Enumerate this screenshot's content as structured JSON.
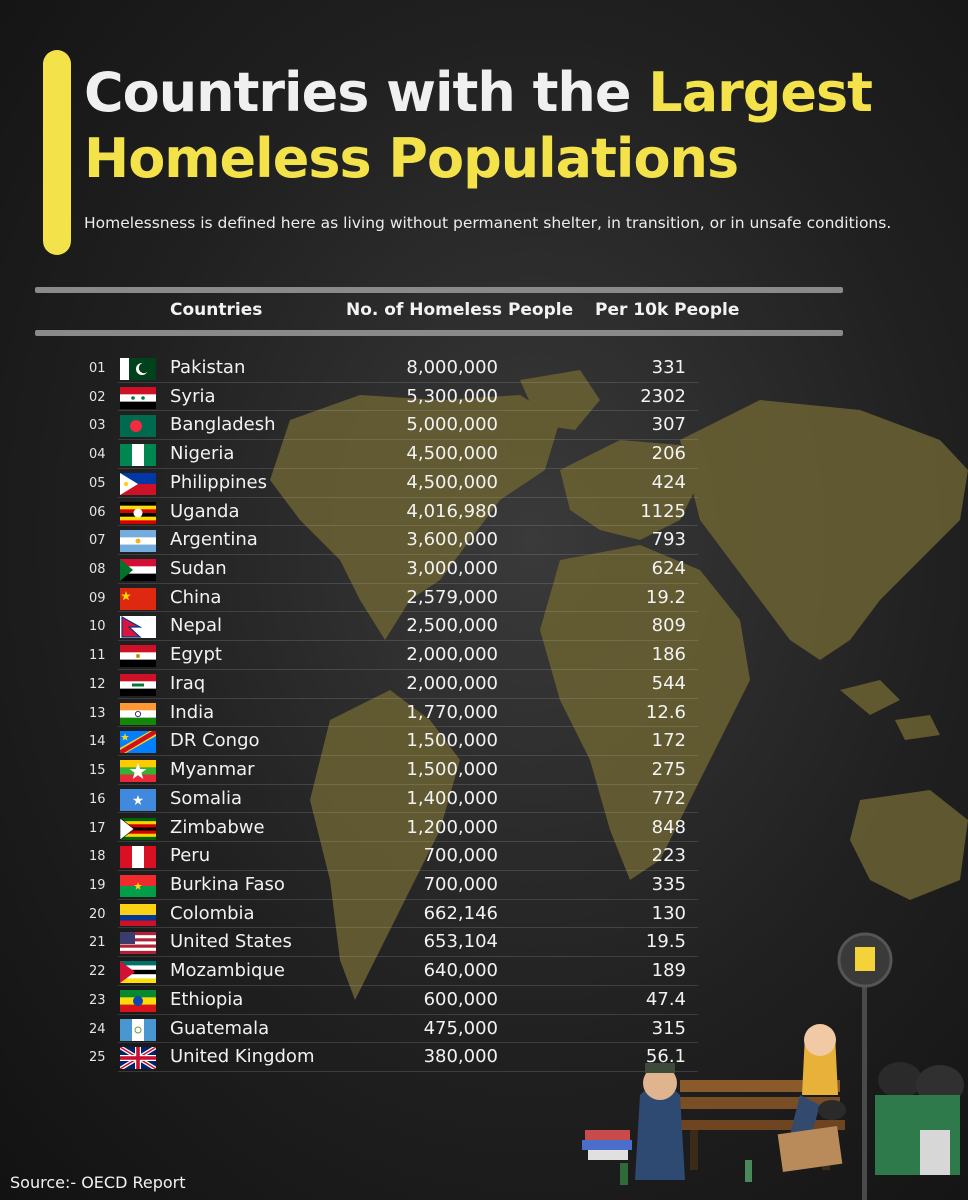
{
  "title": {
    "line1_plain": "Countries with the ",
    "line1_highlight": "Largest",
    "line2_highlight": "Homeless Populations"
  },
  "subtitle": "Homelessness is defined here as living without permanent shelter, in transition, or in unsafe conditions.",
  "source": "Source:-  OECD Report",
  "colors": {
    "accent": "#f3e24a",
    "background": "#1c1c1c",
    "map": "#6b6232"
  },
  "chart_data": {
    "type": "table",
    "columns": [
      "Countries",
      "No. of Homeless People",
      "Per 10k People"
    ],
    "rows": [
      {
        "rank": "01",
        "country": "Pakistan",
        "homeless": "8,000,000",
        "per10k": "331",
        "flag": "pakistan-flag"
      },
      {
        "rank": "02",
        "country": "Syria",
        "homeless": "5,300,000",
        "per10k": "2302",
        "flag": "syria-flag"
      },
      {
        "rank": "03",
        "country": "Bangladesh",
        "homeless": "5,000,000",
        "per10k": "307",
        "flag": "bangladesh-flag"
      },
      {
        "rank": "04",
        "country": "Nigeria",
        "homeless": "4,500,000",
        "per10k": "206",
        "flag": "nigeria-flag"
      },
      {
        "rank": "05",
        "country": "Philippines",
        "homeless": "4,500,000",
        "per10k": "424",
        "flag": "philippines-flag"
      },
      {
        "rank": "06",
        "country": "Uganda",
        "homeless": "4,016,980",
        "per10k": "1125",
        "flag": "uganda-flag"
      },
      {
        "rank": "07",
        "country": "Argentina",
        "homeless": "3,600,000",
        "per10k": "793",
        "flag": "argentina-flag"
      },
      {
        "rank": "08",
        "country": "Sudan",
        "homeless": "3,000,000",
        "per10k": "624",
        "flag": "sudan-flag"
      },
      {
        "rank": "09",
        "country": "China",
        "homeless": "2,579,000",
        "per10k": "19.2",
        "flag": "china-flag"
      },
      {
        "rank": "10",
        "country": "Nepal",
        "homeless": "2,500,000",
        "per10k": "809",
        "flag": "nepal-flag"
      },
      {
        "rank": "11",
        "country": "Egypt",
        "homeless": "2,000,000",
        "per10k": "186",
        "flag": "egypt-flag"
      },
      {
        "rank": "12",
        "country": "Iraq",
        "homeless": "2,000,000",
        "per10k": "544",
        "flag": "iraq-flag"
      },
      {
        "rank": "13",
        "country": "India",
        "homeless": "1,770,000",
        "per10k": "12.6",
        "flag": "india-flag"
      },
      {
        "rank": "14",
        "country": "DR Congo",
        "homeless": "1,500,000",
        "per10k": "172",
        "flag": "dr-congo-flag"
      },
      {
        "rank": "15",
        "country": "Myanmar",
        "homeless": "1,500,000",
        "per10k": "275",
        "flag": "myanmar-flag"
      },
      {
        "rank": "16",
        "country": "Somalia",
        "homeless": "1,400,000",
        "per10k": "772",
        "flag": "somalia-flag"
      },
      {
        "rank": "17",
        "country": "Zimbabwe",
        "homeless": "1,200,000",
        "per10k": "848",
        "flag": "zimbabwe-flag"
      },
      {
        "rank": "18",
        "country": "Peru",
        "homeless": "700,000",
        "per10k": "223",
        "flag": "peru-flag"
      },
      {
        "rank": "19",
        "country": "Burkina Faso",
        "homeless": "700,000",
        "per10k": "335",
        "flag": "burkina-faso-flag"
      },
      {
        "rank": "20",
        "country": "Colombia",
        "homeless": "662,146",
        "per10k": "130",
        "flag": "colombia-flag"
      },
      {
        "rank": "21",
        "country": "United States",
        "homeless": "653,104",
        "per10k": "19.5",
        "flag": "united-states-flag"
      },
      {
        "rank": "22",
        "country": "Mozambique",
        "homeless": "640,000",
        "per10k": "189",
        "flag": "mozambique-flag"
      },
      {
        "rank": "23",
        "country": "Ethiopia",
        "homeless": "600,000",
        "per10k": "47.4",
        "flag": "ethiopia-flag"
      },
      {
        "rank": "24",
        "country": "Guatemala",
        "homeless": "475,000",
        "per10k": "315",
        "flag": "guatemala-flag"
      },
      {
        "rank": "25",
        "country": "United Kingdom",
        "homeless": "380,000",
        "per10k": "56.1",
        "flag": "united-kingdom-flag"
      }
    ]
  }
}
